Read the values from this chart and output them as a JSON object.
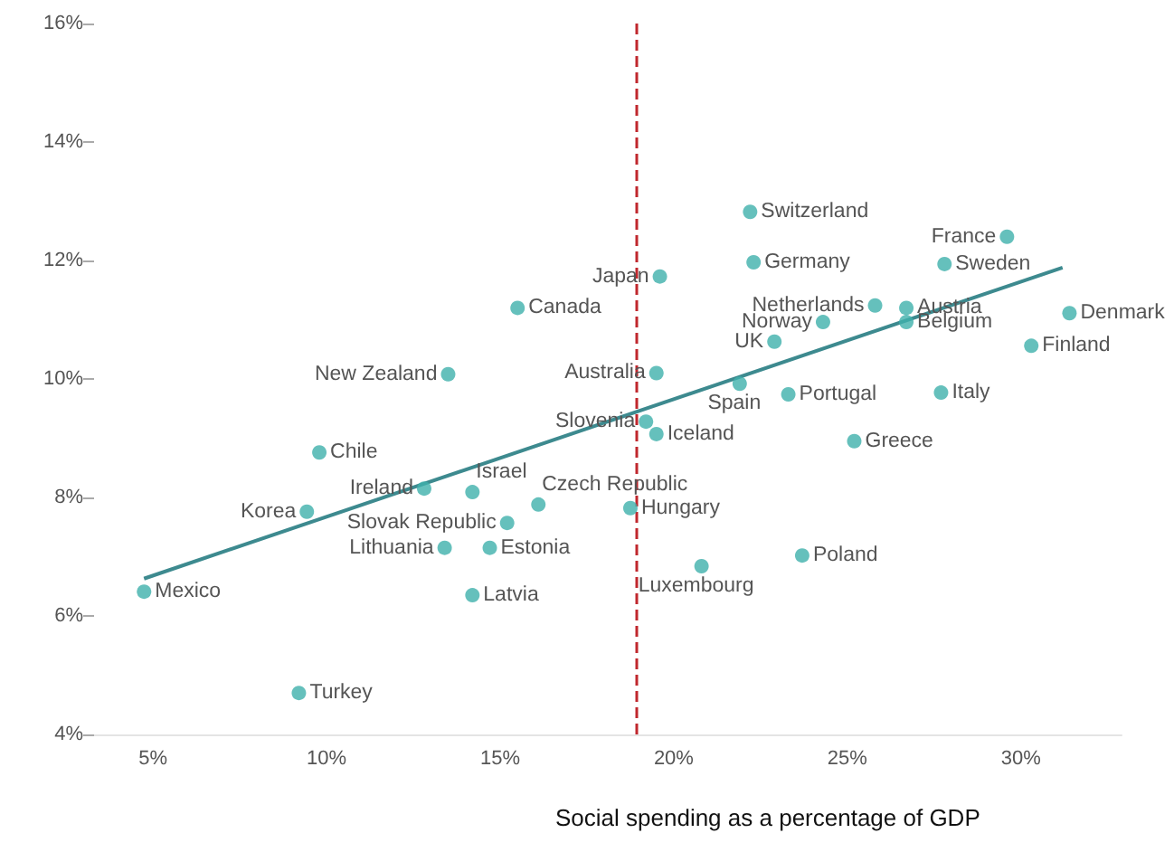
{
  "chart_data": {
    "type": "scatter",
    "xlabel": "Social spending as a percentage of GDP",
    "xlim": [
      3.3,
      32.9
    ],
    "ylim": [
      4,
      16
    ],
    "xticks": [
      {
        "value": 5,
        "label": "5%"
      },
      {
        "value": 10,
        "label": "10%"
      },
      {
        "value": 15,
        "label": "15%"
      },
      {
        "value": 20,
        "label": "20%"
      },
      {
        "value": 25,
        "label": "25%"
      },
      {
        "value": 30,
        "label": "30%"
      }
    ],
    "yticks": [
      {
        "value": 4,
        "label": "4%"
      },
      {
        "value": 6,
        "label": "6%"
      },
      {
        "value": 8,
        "label": "8%"
      },
      {
        "value": 10,
        "label": "10%"
      },
      {
        "value": 12,
        "label": "12%"
      },
      {
        "value": 14,
        "label": "14%"
      },
      {
        "value": 16,
        "label": "16%"
      }
    ],
    "grid": false,
    "marker": "circle",
    "series": [
      {
        "color": "#3fb0ab",
        "x": [
          4.74,
          9.43,
          9.79,
          12.81,
          14.2,
          16.1,
          15.2,
          13.4,
          14.7,
          14.2,
          9.2,
          13.5,
          15.5,
          19.6,
          19.5,
          19.2,
          19.5,
          18.75,
          20.8,
          23.7,
          22.2,
          22.3,
          25.8,
          24.3,
          22.9,
          21.9,
          23.3,
          25.2,
          29.6,
          27.8,
          26.7,
          26.7,
          27.7,
          31.4,
          30.3
        ],
        "values": [
          6.41,
          7.76,
          8.76,
          8.15,
          8.09,
          7.88,
          7.57,
          7.15,
          7.15,
          6.35,
          4.7,
          10.08,
          11.2,
          11.73,
          10.1,
          9.28,
          9.07,
          7.82,
          6.84,
          7.02,
          12.82,
          11.97,
          11.24,
          10.96,
          10.63,
          9.92,
          9.74,
          8.95,
          12.4,
          11.94,
          11.2,
          10.96,
          9.77,
          11.11,
          10.56
        ]
      },
      {
        "type": "line",
        "color": "#3d8a8f",
        "x": [
          4.74,
          31.2
        ],
        "values": [
          6.63,
          11.88
        ],
        "marker": "none",
        "line_style": "solid"
      }
    ],
    "ref_lines": [
      {
        "axis": "x",
        "value": 18.9,
        "color": "#c0272d",
        "line_style": "dashed"
      }
    ],
    "annotations": [
      {
        "text": "Mexico",
        "x": 4.74,
        "y": 6.41
      },
      {
        "text": "Korea",
        "x": 9.43,
        "y": 7.76
      },
      {
        "text": "Chile",
        "x": 9.79,
        "y": 8.76
      },
      {
        "text": "Ireland",
        "x": 12.81,
        "y": 8.15
      },
      {
        "text": "Israel",
        "x": 14.2,
        "y": 8.09
      },
      {
        "text": "Czech Republic",
        "x": 16.1,
        "y": 7.88
      },
      {
        "text": "Slovak Republic",
        "x": 15.2,
        "y": 7.57
      },
      {
        "text": "Lithuania",
        "x": 13.4,
        "y": 7.15
      },
      {
        "text": "Estonia",
        "x": 14.7,
        "y": 7.15
      },
      {
        "text": "Latvia",
        "x": 14.2,
        "y": 6.35
      },
      {
        "text": "Turkey",
        "x": 9.2,
        "y": 4.7
      },
      {
        "text": "New Zealand",
        "x": 13.5,
        "y": 10.08
      },
      {
        "text": "Canada",
        "x": 15.5,
        "y": 11.2
      },
      {
        "text": "Japan",
        "x": 19.6,
        "y": 11.73
      },
      {
        "text": "Australia",
        "x": 19.5,
        "y": 10.1
      },
      {
        "text": "Slovenia",
        "x": 19.2,
        "y": 9.28
      },
      {
        "text": "Iceland",
        "x": 19.5,
        "y": 9.07
      },
      {
        "text": "Hungary",
        "x": 18.75,
        "y": 7.82
      },
      {
        "text": "Luxembourg",
        "x": 20.8,
        "y": 6.84
      },
      {
        "text": "Poland",
        "x": 23.7,
        "y": 7.02
      },
      {
        "text": "Switzerland",
        "x": 22.2,
        "y": 12.82
      },
      {
        "text": "Germany",
        "x": 22.3,
        "y": 11.97
      },
      {
        "text": "Netherlands",
        "x": 25.8,
        "y": 11.24
      },
      {
        "text": "Norway",
        "x": 24.3,
        "y": 10.96
      },
      {
        "text": "UK",
        "x": 22.9,
        "y": 10.63
      },
      {
        "text": "Spain",
        "x": 21.9,
        "y": 9.92
      },
      {
        "text": "Portugal",
        "x": 23.3,
        "y": 9.74
      },
      {
        "text": "Greece",
        "x": 25.2,
        "y": 8.95
      },
      {
        "text": "France",
        "x": 29.6,
        "y": 12.4
      },
      {
        "text": "Sweden",
        "x": 27.8,
        "y": 11.94
      },
      {
        "text": "Austria",
        "x": 26.7,
        "y": 11.2
      },
      {
        "text": "Belgium",
        "x": 26.7,
        "y": 10.96
      },
      {
        "text": "Italy",
        "x": 27.7,
        "y": 9.77
      },
      {
        "text": "Denmark",
        "x": 31.4,
        "y": 11.11
      },
      {
        "text": "Finland",
        "x": 30.3,
        "y": 10.56
      }
    ]
  }
}
